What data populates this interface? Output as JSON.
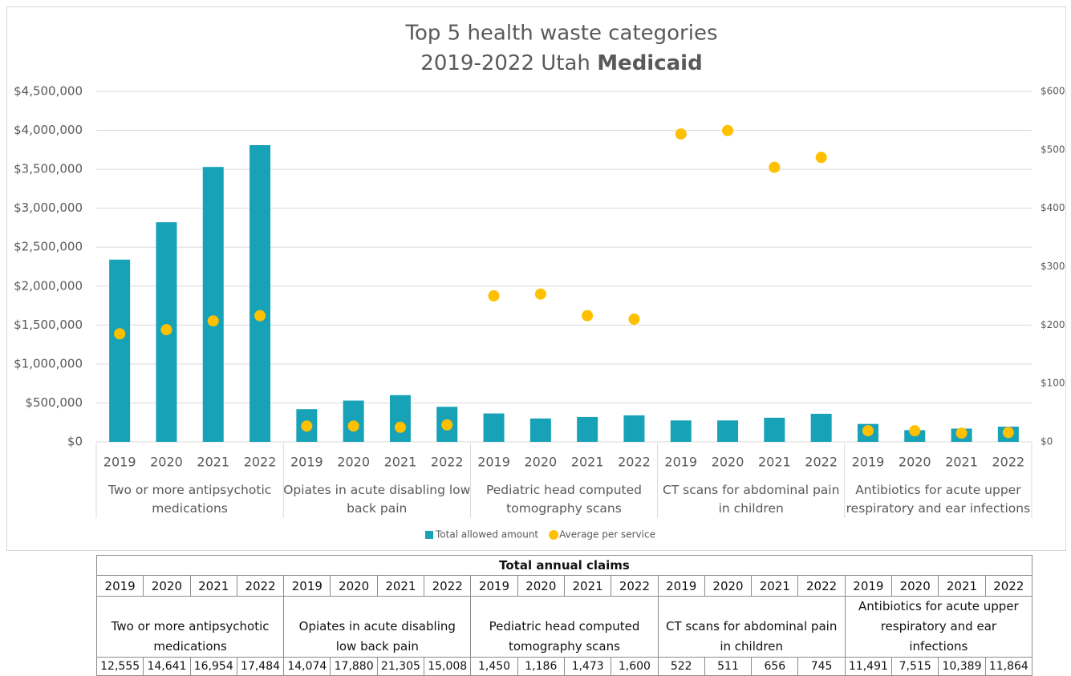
{
  "chart_data": {
    "type": "bar",
    "title": "Top 5 health waste categories",
    "subtitle": "2019-2022 Utah",
    "subtitle_emphasis": "Medicaid",
    "groups": [
      "Two or more antipsychotic medications",
      "Opiates in acute disabling low back pain",
      "Pediatric head computed tomography scans",
      "CT scans for abdominal pain in children",
      "Antibiotics for acute upper respiratory and ear infections"
    ],
    "categories": [
      "2019",
      "2020",
      "2021",
      "2022",
      "2019",
      "2020",
      "2021",
      "2022",
      "2019",
      "2020",
      "2021",
      "2022",
      "2019",
      "2020",
      "2021",
      "2022",
      "2019",
      "2020",
      "2021",
      "2022"
    ],
    "series": [
      {
        "name": "Total allowed amount",
        "type": "bar",
        "color": "#17a2b8",
        "values": [
          2340000,
          2820000,
          3530000,
          3810000,
          420000,
          530000,
          600000,
          450000,
          365000,
          300000,
          320000,
          340000,
          275000,
          275000,
          310000,
          360000,
          230000,
          150000,
          170000,
          195000
        ]
      },
      {
        "name": "Average per service",
        "type": "scatter",
        "axis": "y2",
        "color": "#ffc000",
        "values": [
          185,
          192,
          207,
          216,
          27,
          27,
          25,
          29,
          250,
          253,
          216,
          210,
          527,
          533,
          470,
          487,
          19,
          19,
          15,
          16
        ]
      }
    ],
    "ylim": [
      0,
      4500000
    ],
    "yticks": [
      {
        "value": 0,
        "label": "$0"
      },
      {
        "value": 500000,
        "label": "$500,000"
      },
      {
        "value": 1000000,
        "label": "$1,000,000"
      },
      {
        "value": 1500000,
        "label": "$1,500,000"
      },
      {
        "value": 2000000,
        "label": "$2,000,000"
      },
      {
        "value": 2500000,
        "label": "$2,500,000"
      },
      {
        "value": 3000000,
        "label": "$3,000,000"
      },
      {
        "value": 3500000,
        "label": "$3,500,000"
      },
      {
        "value": 4000000,
        "label": "$4,000,000"
      },
      {
        "value": 4500000,
        "label": "$4,500,000"
      }
    ],
    "y2lim": [
      0,
      600
    ],
    "y2ticks": [
      {
        "value": 0,
        "label": "$0"
      },
      {
        "value": 100,
        "label": "$100"
      },
      {
        "value": 200,
        "label": "$200"
      },
      {
        "value": 300,
        "label": "$300"
      },
      {
        "value": 400,
        "label": "$400"
      },
      {
        "value": 500,
        "label": "$500"
      },
      {
        "value": 600,
        "label": "$600"
      }
    ],
    "grid": true,
    "legend": "bottom"
  },
  "table": {
    "title": "Total annual claims",
    "years": [
      "2019",
      "2020",
      "2021",
      "2022",
      "2019",
      "2020",
      "2021",
      "2022",
      "2019",
      "2020",
      "2021",
      "2022",
      "2019",
      "2020",
      "2021",
      "2022",
      "2019",
      "2020",
      "2021",
      "2022"
    ],
    "groups": [
      "Two or more antipsychotic medications",
      "Opiates in acute disabling low back pain",
      "Pediatric head computed tomography scans",
      "CT scans for abdominal pain in children",
      "Antibiotics for acute upper respiratory and ear infections"
    ],
    "claims": [
      "12,555",
      "14,641",
      "16,954",
      "17,484",
      "14,074",
      "17,880",
      "21,305",
      "15,008",
      "1,450",
      "1,186",
      "1,473",
      "1,600",
      "522",
      "511",
      "656",
      "745",
      "11,491",
      "7,515",
      "10,389",
      "11,864"
    ]
  }
}
